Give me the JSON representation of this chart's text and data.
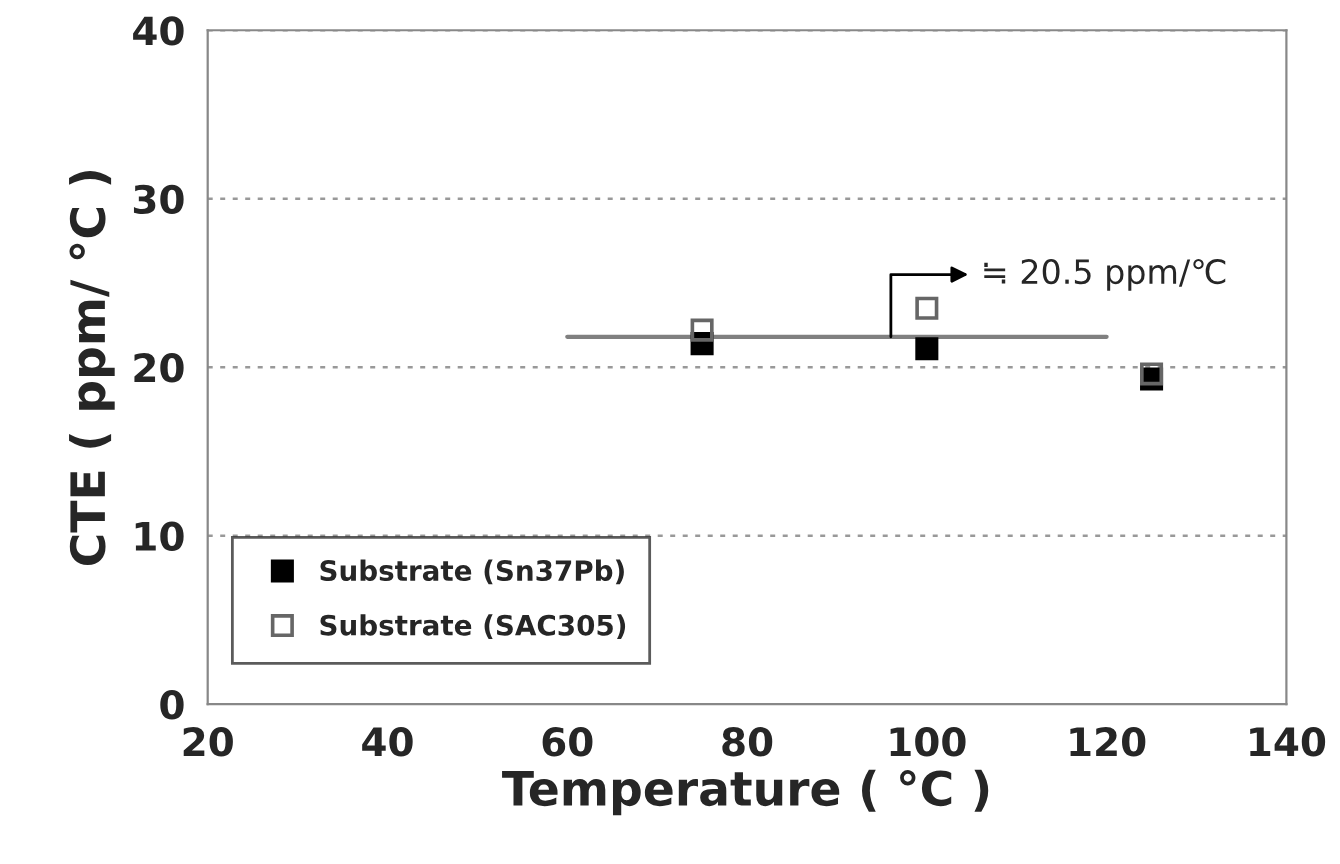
{
  "chart_data": {
    "type": "scatter",
    "xlabel": "Temperature ( °C )",
    "ylabel": "CTE ( ppm/ °C )",
    "xlim": [
      20,
      140
    ],
    "xticks": [
      20,
      40,
      60,
      80,
      100,
      120,
      140
    ],
    "ylim": [
      0,
      40
    ],
    "yticks": [
      0,
      10,
      20,
      30,
      40
    ],
    "grid": "y",
    "legend": "bottom left",
    "series": [
      {
        "name": "Substrate (Sn37Pb)",
        "color": "#000000",
        "marker": "square",
        "x": [
          75,
          100,
          125
        ],
        "values": [
          21.4,
          21.1,
          19.3
        ]
      },
      {
        "name": "Substrate (SAC305)",
        "color": "#666666",
        "marker": "square",
        "x": [
          75,
          100,
          125
        ],
        "values": [
          22.2,
          23.5,
          19.6
        ]
      },
      {
        "type": "line",
        "color": "#808080",
        "marker": "none",
        "x": [
          60,
          120
        ],
        "values": [
          21.8,
          21.8
        ]
      }
    ],
    "annotations": [
      {
        "text": "≒ 20.5 ppm/℃",
        "x": 96,
        "y": 21.8
      }
    ]
  }
}
